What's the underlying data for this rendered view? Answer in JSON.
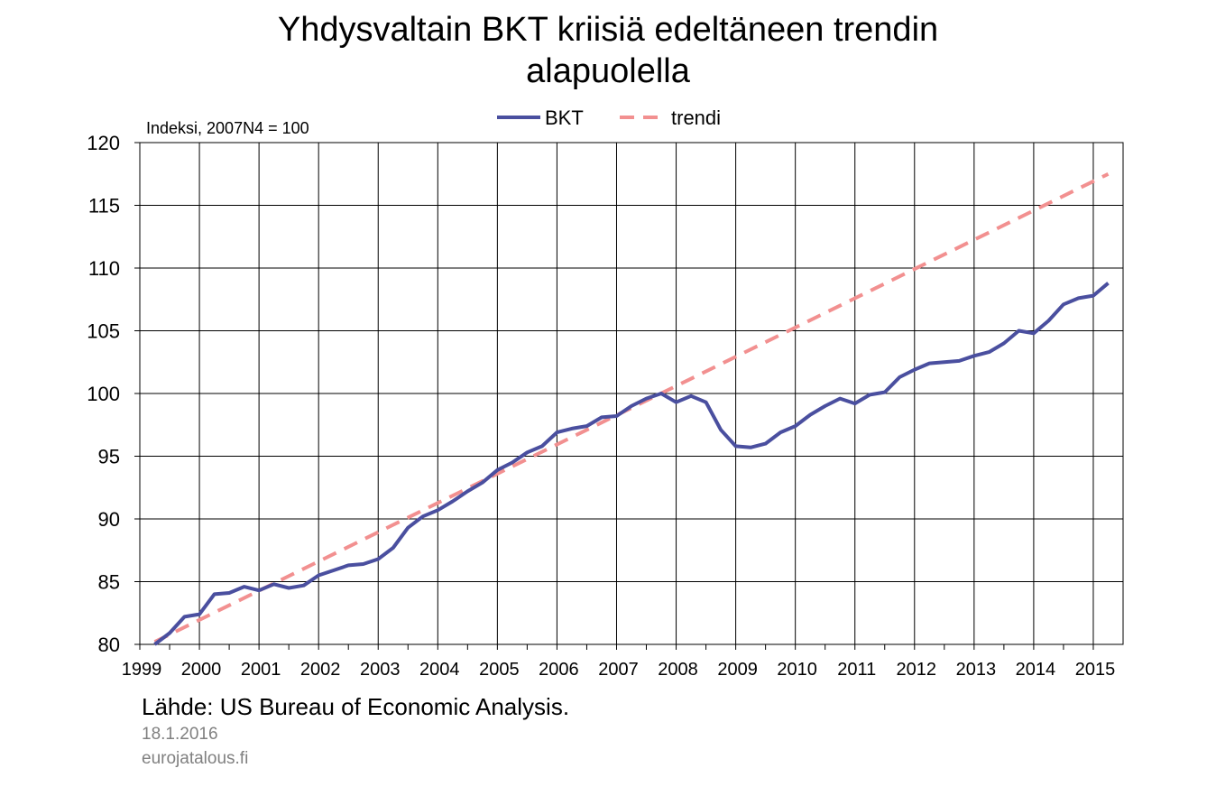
{
  "chart_data": {
    "type": "line",
    "title_lines": [
      "Yhdysvaltain BKT kriisiä edeltäneen trendin",
      "alapuolella"
    ],
    "ylabel": "Indeksi,  2007N4 = 100",
    "ylim": [
      80,
      120
    ],
    "yticks": [
      80,
      85,
      90,
      95,
      100,
      105,
      110,
      115,
      120
    ],
    "xlim": [
      1999,
      2015.5
    ],
    "xticks": [
      "1999",
      "2000",
      "2001",
      "2002",
      "2003",
      "2004",
      "2005",
      "2006",
      "2007",
      "2008",
      "2009",
      "2010",
      "2011",
      "2012",
      "2013",
      "2014",
      "2015"
    ],
    "grid": true,
    "legend_position": "top-center",
    "series": [
      {
        "name": "BKT",
        "color": "#4a4f9f",
        "style": "solid",
        "x": [
          1999.25,
          1999.5,
          1999.75,
          2000.0,
          2000.25,
          2000.5,
          2000.75,
          2001.0,
          2001.25,
          2001.5,
          2001.75,
          2002.0,
          2002.25,
          2002.5,
          2002.75,
          2003.0,
          2003.25,
          2003.5,
          2003.75,
          2004.0,
          2004.25,
          2004.5,
          2004.75,
          2005.0,
          2005.25,
          2005.5,
          2005.75,
          2006.0,
          2006.25,
          2006.5,
          2006.75,
          2007.0,
          2007.25,
          2007.5,
          2007.75,
          2008.0,
          2008.25,
          2008.5,
          2008.75,
          2009.0,
          2009.25,
          2009.5,
          2009.75,
          2010.0,
          2010.25,
          2010.5,
          2010.75,
          2011.0,
          2011.25,
          2011.5,
          2011.75,
          2012.0,
          2012.25,
          2012.5,
          2012.75,
          2013.0,
          2013.25,
          2013.5,
          2013.75,
          2014.0,
          2014.25,
          2014.5,
          2014.75,
          2015.0,
          2015.25
        ],
        "values": [
          80.0,
          80.9,
          82.2,
          82.4,
          84.0,
          84.1,
          84.6,
          84.3,
          84.8,
          84.5,
          84.7,
          85.5,
          85.9,
          86.3,
          86.4,
          86.8,
          87.7,
          89.3,
          90.2,
          90.7,
          91.4,
          92.2,
          92.9,
          93.9,
          94.5,
          95.3,
          95.8,
          96.9,
          97.2,
          97.4,
          98.1,
          98.2,
          99.0,
          99.6,
          100.0,
          99.3,
          99.8,
          99.3,
          97.1,
          95.8,
          95.7,
          96.0,
          96.9,
          97.4,
          98.3,
          99.0,
          99.6,
          99.2,
          99.9,
          100.1,
          101.3,
          101.9,
          102.4,
          102.5,
          102.6,
          103.0,
          103.3,
          104.0,
          105.0,
          104.8,
          105.8,
          107.1,
          107.6,
          107.8,
          108.8
        ]
      },
      {
        "name": "trendi",
        "color": "#f29090",
        "style": "dashed",
        "x": [
          1999.25,
          2015.25
        ],
        "values": [
          80.2,
          117.5
        ]
      }
    ]
  },
  "footer": {
    "source": "Lähde: US Bureau of Economic Analysis.",
    "date": "18.1.2016",
    "site": "eurojatalous.fi"
  }
}
